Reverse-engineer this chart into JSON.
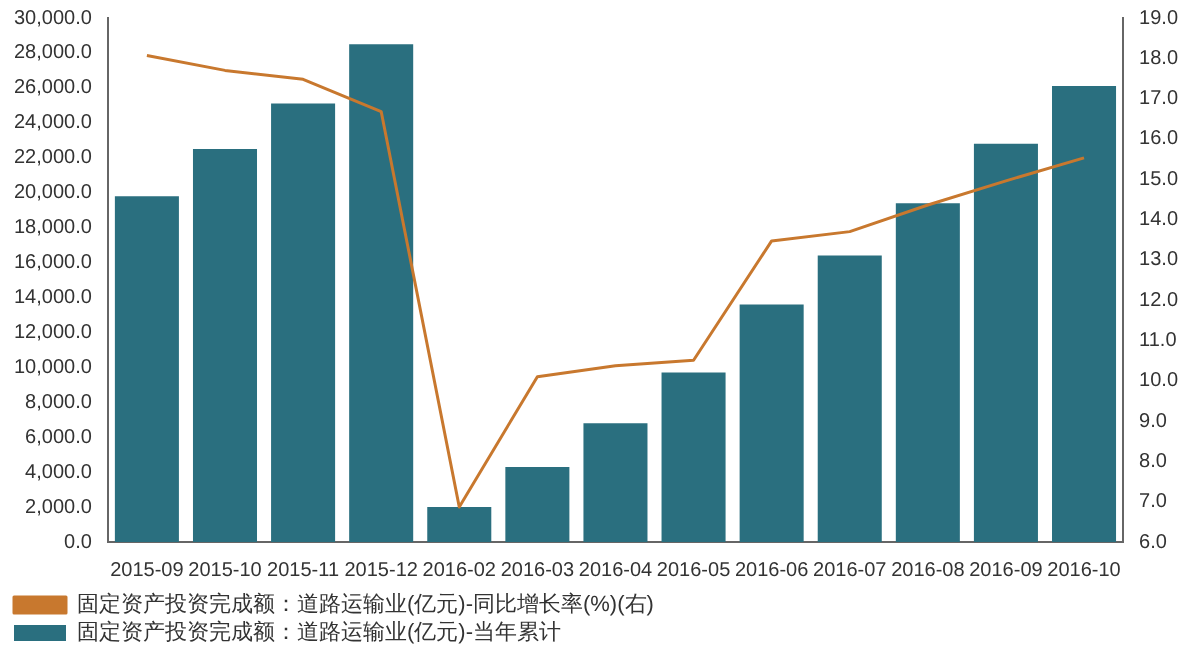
{
  "chart_data": {
    "type": "bar",
    "categories": [
      "2015-09",
      "2015-10",
      "2015-11",
      "2015-12",
      "2016-02",
      "2016-03",
      "2016-04",
      "2016-05",
      "2016-06",
      "2016-07",
      "2016-08",
      "2016-09",
      "2016-10"
    ],
    "series": [
      {
        "name": "固定资产投资完成额：道路运输业(亿元)-当年累计",
        "color": "#2a6f7f",
        "values": [
          19800,
          22500,
          25100,
          28500,
          2000,
          4300,
          6800,
          9700,
          13600,
          16400,
          19400,
          22800,
          26100
        ]
      },
      {
        "name": "固定资产投资完成额：道路运输业(亿元)-同比增长率(%)(右)",
        "type": "line",
        "axis": "y2",
        "color": "#c8782e",
        "values": [
          18.07,
          17.7,
          17.48,
          16.68,
          6.87,
          10.1,
          10.37,
          10.51,
          13.47,
          13.7,
          14.36,
          14.96,
          15.53
        ]
      }
    ],
    "ylim": [
      0,
      30000
    ],
    "yticks": [
      {
        "value": 0,
        "label": "0.0"
      },
      {
        "value": 2000,
        "label": "2,000.0"
      },
      {
        "value": 4000,
        "label": "4,000.0"
      },
      {
        "value": 6000,
        "label": "6,000.0"
      },
      {
        "value": 8000,
        "label": "8,000.0"
      },
      {
        "value": 10000,
        "label": "10,000.0"
      },
      {
        "value": 12000,
        "label": "12,000.0"
      },
      {
        "value": 14000,
        "label": "14,000.0"
      },
      {
        "value": 16000,
        "label": "16,000.0"
      },
      {
        "value": 18000,
        "label": "18,000.0"
      },
      {
        "value": 20000,
        "label": "20,000.0"
      },
      {
        "value": 22000,
        "label": "22,000.0"
      },
      {
        "value": 24000,
        "label": "24,000.0"
      },
      {
        "value": 26000,
        "label": "26,000.0"
      },
      {
        "value": 28000,
        "label": "28,000.0"
      },
      {
        "value": 30000,
        "label": "30,000.0"
      }
    ],
    "y2lim": [
      6,
      19
    ],
    "y2ticks": [
      {
        "value": 6,
        "label": "6.0"
      },
      {
        "value": 7,
        "label": "7.0"
      },
      {
        "value": 8,
        "label": "8.0"
      },
      {
        "value": 9,
        "label": "9.0"
      },
      {
        "value": 10,
        "label": "10.0"
      },
      {
        "value": 11,
        "label": "11.0"
      },
      {
        "value": 12,
        "label": "12.0"
      },
      {
        "value": 13,
        "label": "13.0"
      },
      {
        "value": 14,
        "label": "14.0"
      },
      {
        "value": 15,
        "label": "15.0"
      },
      {
        "value": 16,
        "label": "16.0"
      },
      {
        "value": 17,
        "label": "17.0"
      },
      {
        "value": 18,
        "label": "18.0"
      },
      {
        "value": 19,
        "label": "19.0"
      }
    ],
    "grid": false,
    "legend": "bottom",
    "marker": "none"
  }
}
